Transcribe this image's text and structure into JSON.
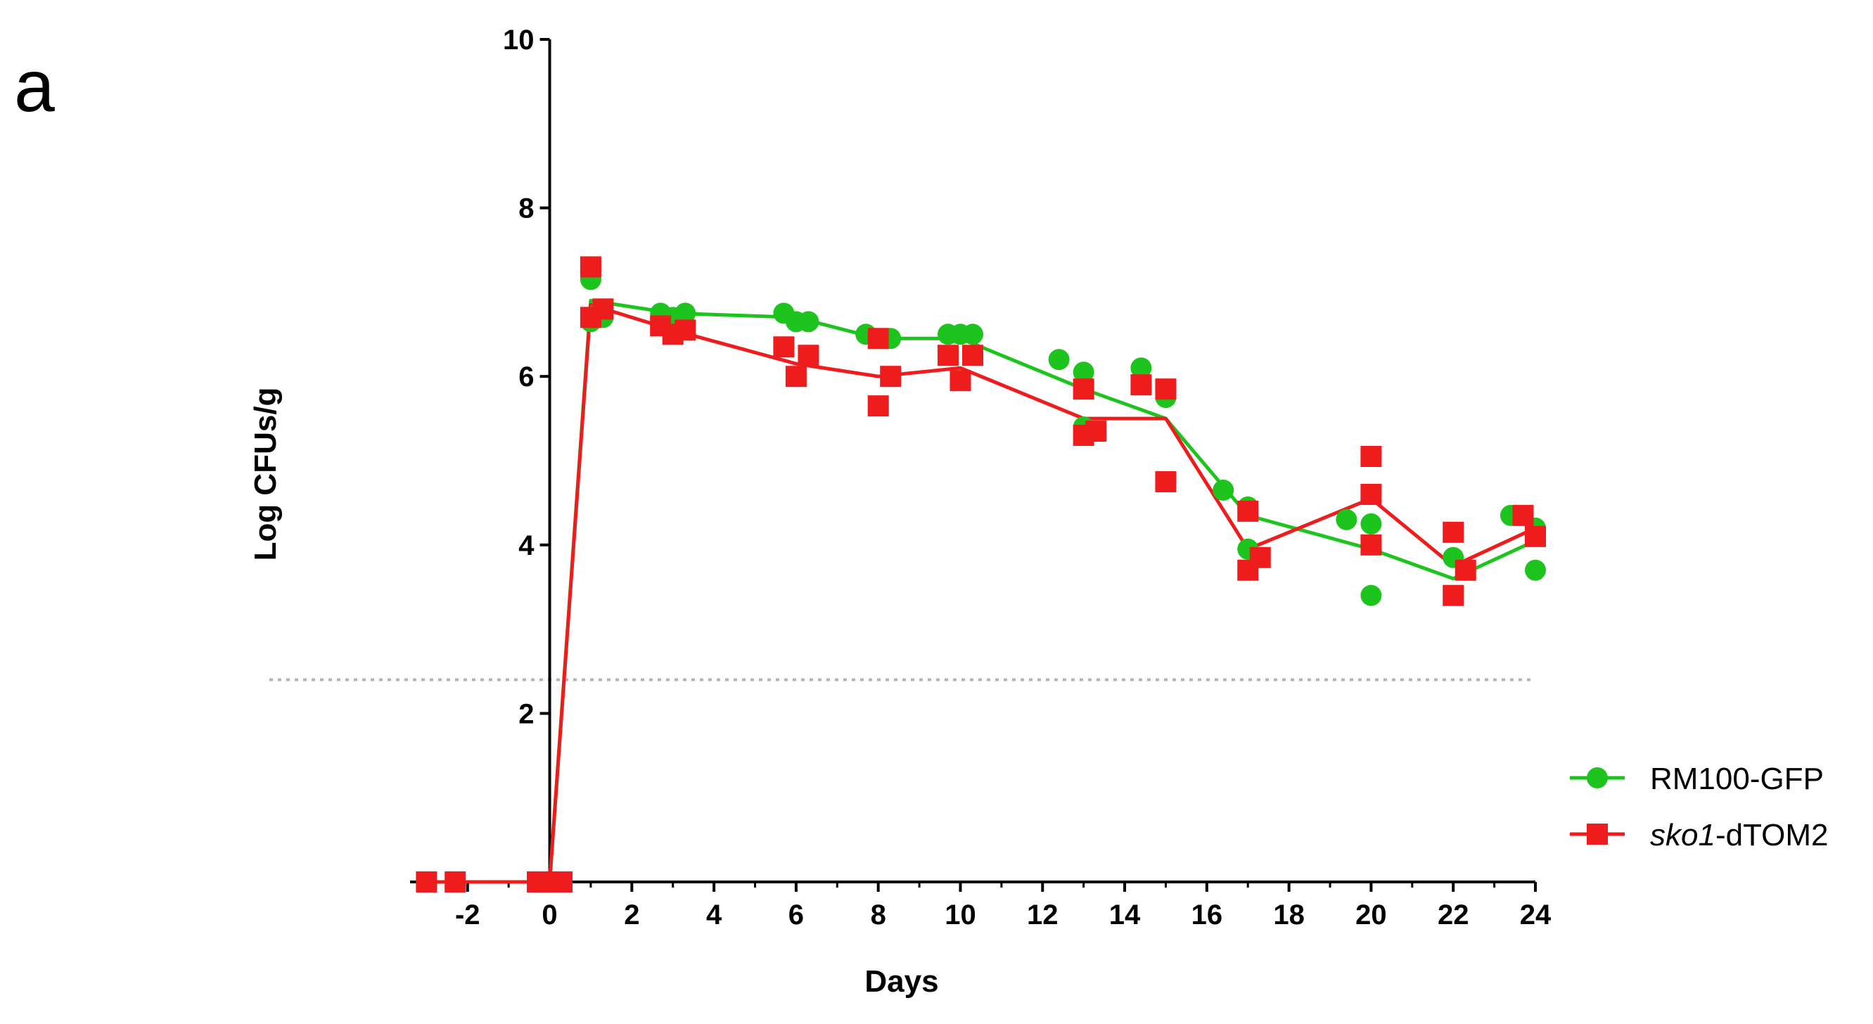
{
  "panel_label": "a",
  "colors": {
    "rm100": "#1ec41e",
    "sko1": "#ee1c1c",
    "axis": "#000000",
    "threshold": "#b4b4b4"
  },
  "chart_data": {
    "type": "scatter",
    "xlabel": "Days",
    "ylabel": "Log CFUs/g",
    "xlim": [
      -3.4,
      24
    ],
    "ylim": [
      0,
      10
    ],
    "xticks": [
      -2,
      0,
      2,
      4,
      6,
      8,
      10,
      12,
      14,
      16,
      18,
      20,
      22,
      24
    ],
    "yticks": [
      2,
      4,
      6,
      8,
      10
    ],
    "threshold_line": {
      "y": 2.4,
      "style": "dotted"
    },
    "legend_position": "bottom-right",
    "series": [
      {
        "name": "RM100-GFP",
        "name_parts": [
          "RM100-GFP",
          ""
        ],
        "marker": "circle",
        "color": "#1ec41e",
        "line_x": [
          -3,
          0,
          1,
          3,
          6,
          8,
          10,
          13,
          15,
          17,
          20,
          22,
          24
        ],
        "line_y": [
          0,
          0,
          6.9,
          6.75,
          6.7,
          6.45,
          6.45,
          5.85,
          5.5,
          4.35,
          3.95,
          3.6,
          4.05
        ],
        "points": [
          [
            -3,
            0
          ],
          [
            -2.3,
            0
          ],
          [
            -0.3,
            0
          ],
          [
            0,
            0
          ],
          [
            0.3,
            0
          ],
          [
            1,
            7.15
          ],
          [
            1.2,
            6.75
          ],
          [
            1,
            6.65
          ],
          [
            1.3,
            6.7
          ],
          [
            2.7,
            6.75
          ],
          [
            3,
            6.7
          ],
          [
            3.3,
            6.75
          ],
          [
            5.7,
            6.75
          ],
          [
            6,
            6.65
          ],
          [
            6.3,
            6.65
          ],
          [
            7.7,
            6.5
          ],
          [
            8.3,
            6.45
          ],
          [
            9.7,
            6.5
          ],
          [
            10,
            6.5
          ],
          [
            10.3,
            6.5
          ],
          [
            12.4,
            6.2
          ],
          [
            13,
            6.05
          ],
          [
            13,
            5.4
          ],
          [
            14.4,
            6.1
          ],
          [
            15,
            5.75
          ],
          [
            16.4,
            4.65
          ],
          [
            17,
            4.45
          ],
          [
            17,
            3.95
          ],
          [
            19.4,
            4.3
          ],
          [
            20,
            4.25
          ],
          [
            20,
            3.4
          ],
          [
            22,
            3.85
          ],
          [
            22.3,
            3.7
          ],
          [
            23.4,
            4.35
          ],
          [
            24,
            4.2
          ],
          [
            24,
            3.7
          ]
        ]
      },
      {
        "name": "sko1-dTOM2",
        "name_parts": [
          "sko1",
          "-dTOM2"
        ],
        "marker": "square",
        "color": "#ee1c1c",
        "line_x": [
          -3,
          0,
          1,
          3,
          6,
          8,
          10,
          13,
          15,
          17,
          20,
          22,
          24
        ],
        "line_y": [
          0,
          0,
          6.85,
          6.55,
          6.15,
          6.0,
          6.1,
          5.5,
          5.5,
          3.95,
          4.55,
          3.75,
          4.2
        ],
        "points": [
          [
            -3,
            0
          ],
          [
            -2.3,
            0
          ],
          [
            -0.3,
            0
          ],
          [
            0,
            0
          ],
          [
            0.3,
            0
          ],
          [
            1,
            7.3
          ],
          [
            1,
            6.7
          ],
          [
            1.3,
            6.8
          ],
          [
            2.7,
            6.6
          ],
          [
            3,
            6.5
          ],
          [
            3.3,
            6.55
          ],
          [
            5.7,
            6.35
          ],
          [
            6,
            6.0
          ],
          [
            6.3,
            6.25
          ],
          [
            8,
            6.45
          ],
          [
            8,
            5.65
          ],
          [
            8.3,
            6.0
          ],
          [
            9.7,
            6.25
          ],
          [
            10,
            5.95
          ],
          [
            10.3,
            6.25
          ],
          [
            13,
            5.85
          ],
          [
            13,
            5.3
          ],
          [
            13.3,
            5.35
          ],
          [
            14.4,
            5.9
          ],
          [
            15,
            5.85
          ],
          [
            15,
            4.75
          ],
          [
            17,
            4.4
          ],
          [
            17,
            3.7
          ],
          [
            17.3,
            3.85
          ],
          [
            20,
            5.05
          ],
          [
            20,
            4.6
          ],
          [
            20,
            4.0
          ],
          [
            22,
            4.15
          ],
          [
            22,
            3.4
          ],
          [
            22.3,
            3.7
          ],
          [
            23.7,
            4.35
          ],
          [
            24,
            4.1
          ]
        ]
      }
    ]
  }
}
